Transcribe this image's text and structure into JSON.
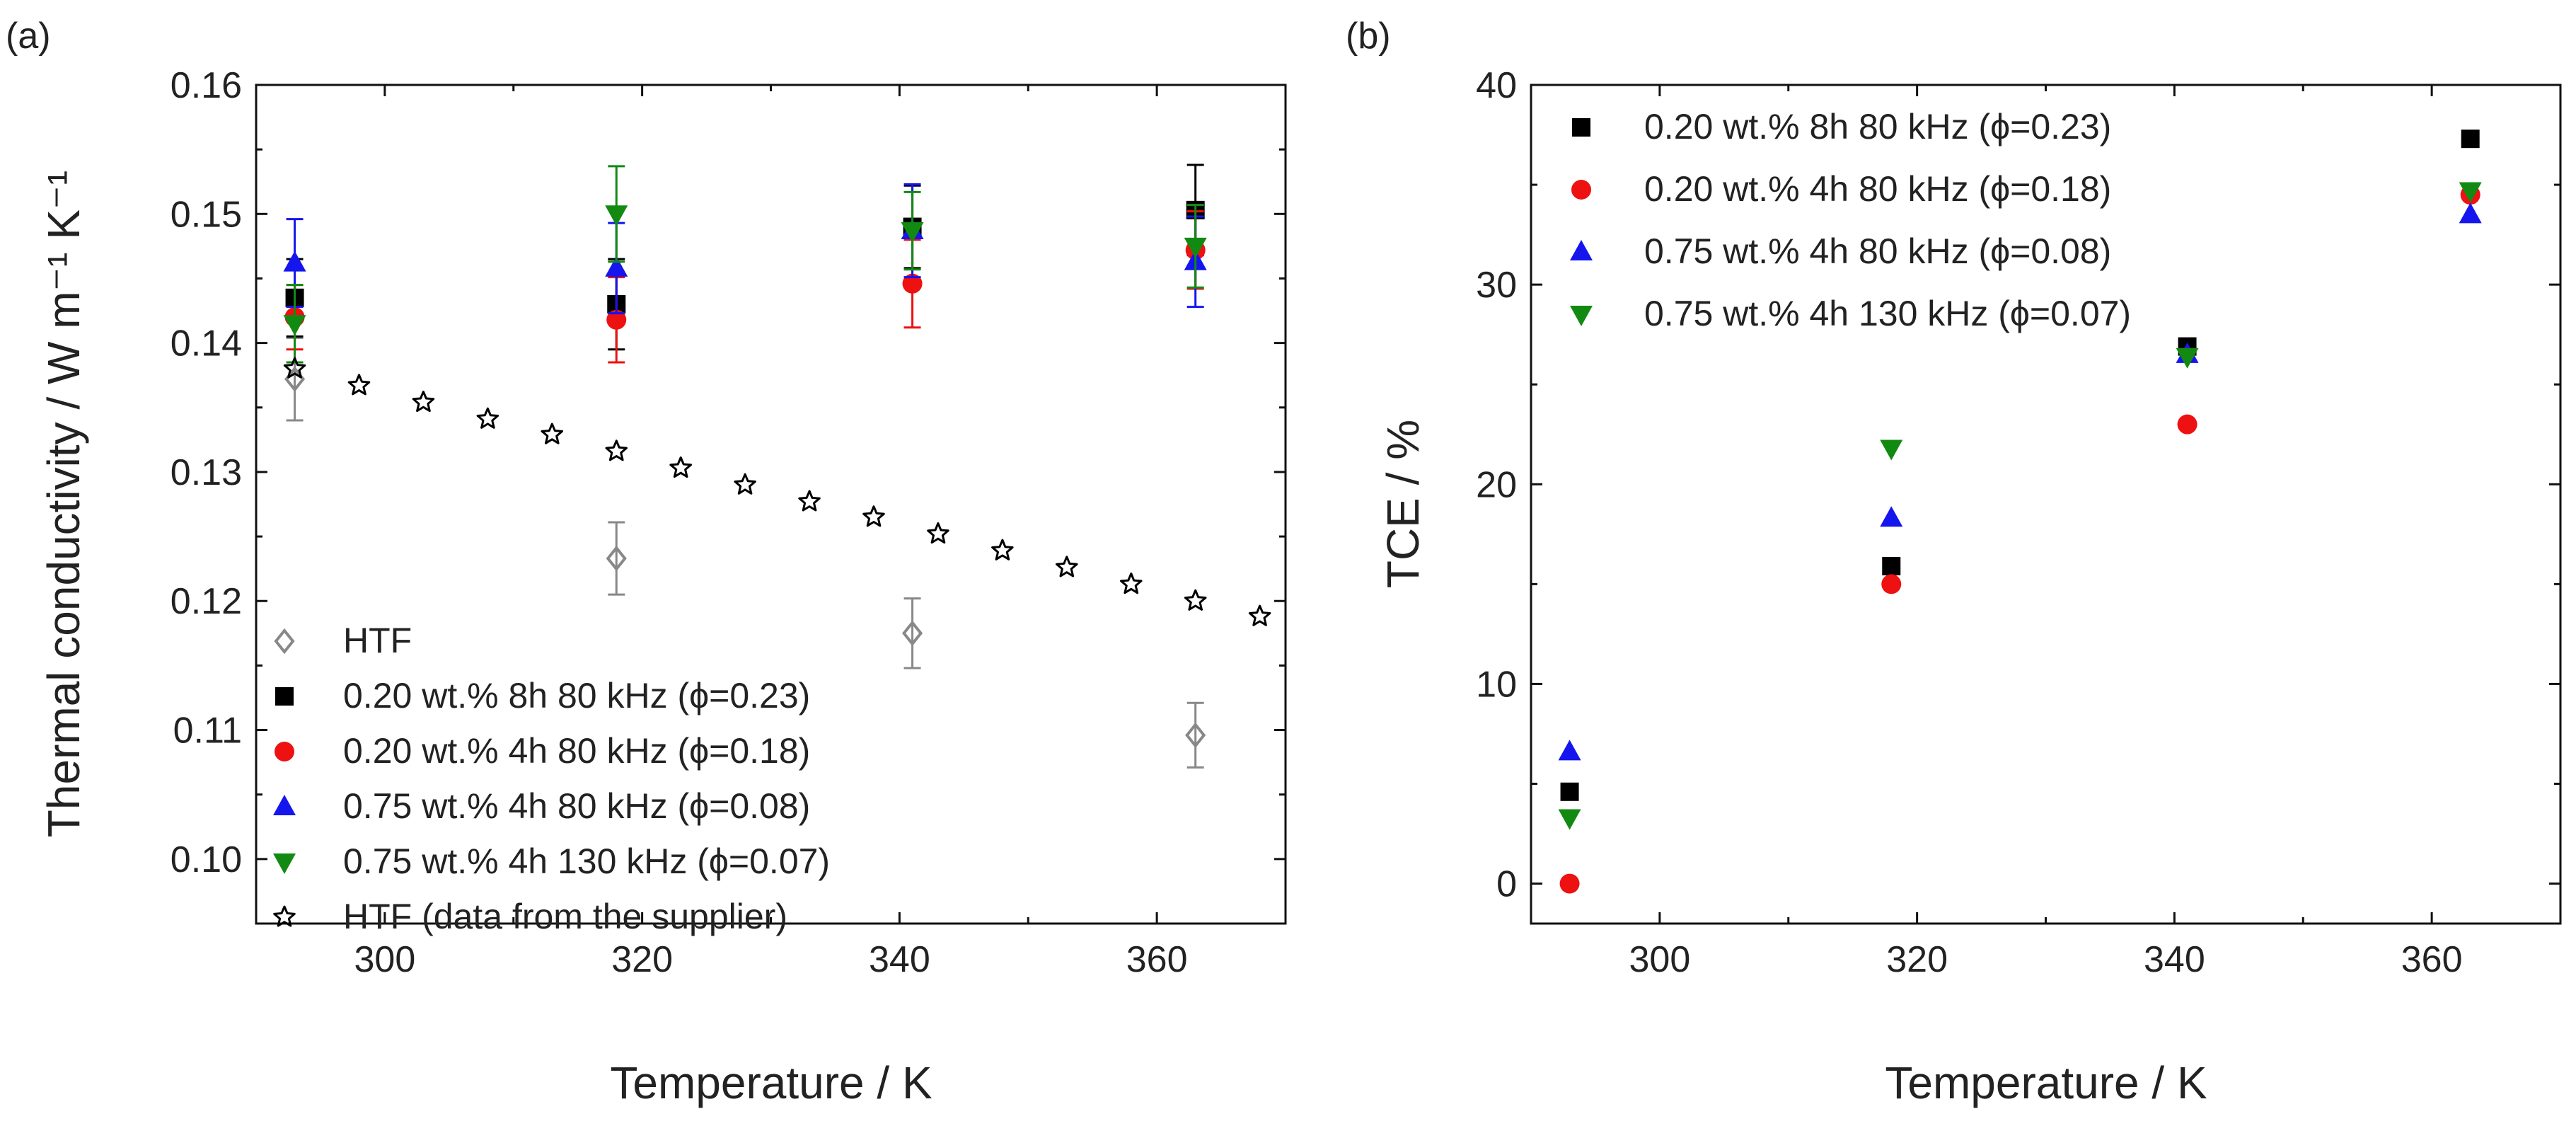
{
  "chart_data": [
    {
      "type": "scatter",
      "panel_label": "(a)",
      "xlabel": "Temperature / K",
      "ylabel": "Thermal conductivity / W m⁻¹ K⁻¹",
      "xlim": [
        290,
        370
      ],
      "ylim": [
        0.095,
        0.16
      ],
      "xticks": [
        300,
        320,
        340,
        360
      ],
      "yticks": [
        0.1,
        0.11,
        0.12,
        0.13,
        0.14,
        0.15,
        0.16
      ],
      "ytick_labels": [
        "0.10",
        "0.11",
        "0.12",
        "0.13",
        "0.14",
        "0.15",
        "0.16"
      ],
      "legend_position": "bottom-left",
      "series": [
        {
          "name": "HTF",
          "marker": "diamond-open",
          "color": "#888888",
          "x": [
            293,
            318,
            341,
            363
          ],
          "y": [
            0.1372,
            0.1233,
            0.1175,
            0.1096
          ],
          "err": [
            0.0032,
            0.0028,
            0.0027,
            0.0025
          ]
        },
        {
          "name": "0.20 wt.% 8h 80 kHz (ϕ=0.23)",
          "marker": "square",
          "color": "#000000",
          "x": [
            293,
            318,
            341,
            363
          ],
          "y": [
            0.1435,
            0.143,
            0.149,
            0.1503
          ],
          "err": [
            0.003,
            0.0035,
            0.0032,
            0.0035
          ]
        },
        {
          "name": "0.20 wt.% 4h 80 kHz (ϕ=0.18)",
          "marker": "circle",
          "color": "#ee1111",
          "x": [
            293,
            318,
            341,
            363
          ],
          "y": [
            0.142,
            0.1418,
            0.1446,
            0.1472
          ],
          "err": [
            0.0025,
            0.0033,
            0.0034,
            0.003
          ]
        },
        {
          "name": "0.75 wt.% 4h 80 kHz (ϕ=0.08)",
          "marker": "triangle-up",
          "color": "#1515ee",
          "x": [
            293,
            318,
            341,
            363
          ],
          "y": [
            0.1462,
            0.1458,
            0.1487,
            0.1463
          ],
          "err": [
            0.0034,
            0.0035,
            0.0036,
            0.0035
          ]
        },
        {
          "name": "0.75 wt.% 4h 130 kHz (ϕ=0.07)",
          "marker": "triangle-down",
          "color": "#128a12",
          "x": [
            293,
            318,
            341,
            363
          ],
          "y": [
            0.1415,
            0.15,
            0.1487,
            0.1475
          ],
          "err": [
            0.003,
            0.0037,
            0.003,
            0.0032
          ]
        },
        {
          "name": "HTF (data from the supplier)",
          "marker": "star-open",
          "color": "#000000",
          "x": [
            293,
            298,
            303,
            308,
            313,
            318,
            323,
            328,
            333,
            338,
            343,
            348,
            353,
            358,
            363,
            368
          ],
          "y": [
            0.138,
            0.1367,
            0.1354,
            0.1341,
            0.1329,
            0.1316,
            0.1303,
            0.129,
            0.1277,
            0.1265,
            0.1252,
            0.1239,
            0.1226,
            0.1213,
            0.12,
            0.1188
          ]
        }
      ]
    },
    {
      "type": "scatter",
      "panel_label": "(b)",
      "xlabel": "Temperature / K",
      "ylabel": "TCE / %",
      "xlim": [
        290,
        370
      ],
      "ylim": [
        -2,
        40
      ],
      "xticks": [
        300,
        320,
        340,
        360
      ],
      "yticks": [
        0,
        10,
        20,
        30,
        40
      ],
      "ytick_labels": [
        "0",
        "10",
        "20",
        "30",
        "40"
      ],
      "legend_position": "top-left",
      "series": [
        {
          "name": "0.20 wt.% 8h 80 kHz (ϕ=0.23)",
          "marker": "square",
          "color": "#000000",
          "x": [
            293,
            318,
            341,
            363
          ],
          "y": [
            4.6,
            15.9,
            26.9,
            37.3
          ]
        },
        {
          "name": "0.20 wt.% 4h 80 kHz (ϕ=0.18)",
          "marker": "circle",
          "color": "#ee1111",
          "x": [
            293,
            318,
            341,
            363
          ],
          "y": [
            0.0,
            15.0,
            23.0,
            34.5
          ]
        },
        {
          "name": "0.75 wt.% 4h 80 kHz (ϕ=0.08)",
          "marker": "triangle-up",
          "color": "#1515ee",
          "x": [
            293,
            318,
            341,
            363
          ],
          "y": [
            6.6,
            18.3,
            26.5,
            33.5
          ]
        },
        {
          "name": "0.75 wt.% 4h 130 kHz (ϕ=0.07)",
          "marker": "triangle-down",
          "color": "#128a12",
          "x": [
            293,
            318,
            341,
            363
          ],
          "y": [
            3.3,
            21.8,
            26.4,
            34.7
          ]
        }
      ]
    }
  ]
}
